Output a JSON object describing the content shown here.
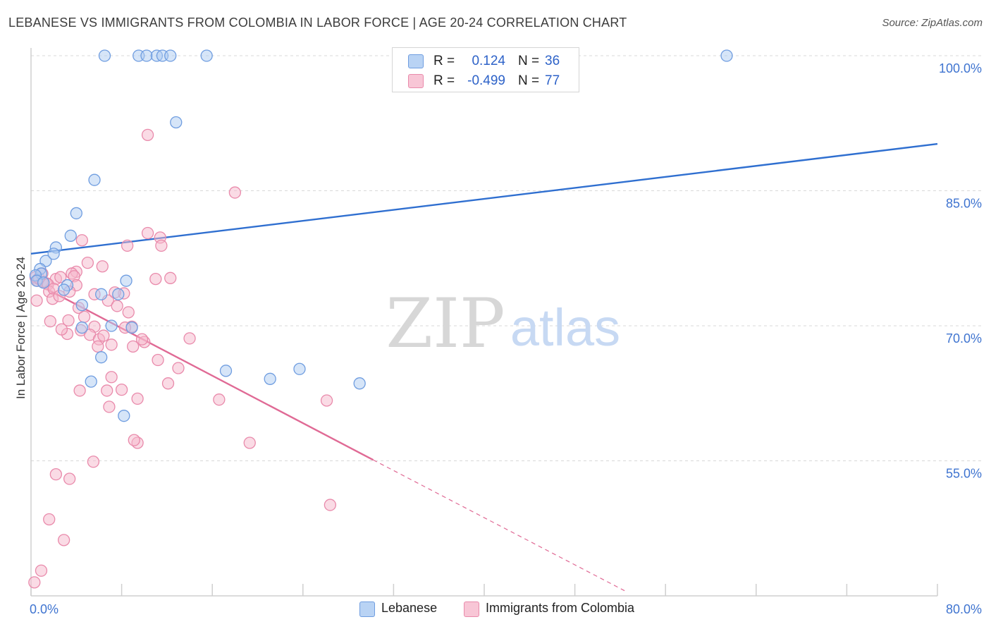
{
  "title": "LEBANESE VS IMMIGRANTS FROM COLOMBIA IN LABOR FORCE | AGE 20-24 CORRELATION CHART",
  "source": "Source: ZipAtlas.com",
  "watermark": {
    "zip": "ZIP",
    "atlas": "atlas"
  },
  "colors": {
    "blue_fill": "#aecbf2",
    "blue_stroke": "#6f9de0",
    "blue_line": "#2f6fd0",
    "pink_fill": "#f5b8cc",
    "pink_stroke": "#e98aab",
    "pink_line": "#e06a95",
    "axis_text": "#3f74d0",
    "grid": "#d8d8d8"
  },
  "legend_top": {
    "rows": [
      {
        "r_label": "R =",
        "r_value": "0.124",
        "n_label": "N =",
        "n_value": "36"
      },
      {
        "r_label": "R =",
        "r_value": "-0.499",
        "n_label": "N =",
        "n_value": "77"
      }
    ]
  },
  "legend_bottom": {
    "items": [
      "Lebanese",
      "Immigrants from Colombia"
    ]
  },
  "chart_data": {
    "type": "scatter",
    "title": "LEBANESE VS IMMIGRANTS FROM COLOMBIA IN LABOR FORCE | AGE 20-24 CORRELATION CHART",
    "xlabel": "",
    "ylabel": "In Labor Force | Age 20-24",
    "xlim": [
      0,
      80
    ],
    "ylim": [
      40,
      103
    ],
    "x_tick_labels": [
      "0.0%",
      "80.0%"
    ],
    "y_ticks": [
      55,
      70,
      85,
      100
    ],
    "y_tick_labels": [
      "55.0%",
      "70.0%",
      "85.0%",
      "100.0%"
    ],
    "grid": true,
    "series": [
      {
        "name": "Lebanese",
        "color": "#aecbf2",
        "x": [
          6.5,
          9.5,
          10.2,
          11.1,
          11.6,
          12.3,
          15.5,
          61.4,
          12.8,
          5.6,
          4.0,
          3.5,
          2.2,
          1.3,
          2.0,
          0.8,
          0.9,
          0.4,
          0.5,
          1.1,
          3.2,
          4.5,
          8.4,
          7.7,
          6.2,
          2.9,
          7.1,
          4.5,
          8.9,
          6.2,
          5.3,
          17.2,
          21.1,
          23.7,
          29.0,
          8.2
        ],
        "y": [
          100,
          100,
          100,
          100,
          100,
          100,
          100,
          100,
          92.6,
          86.2,
          82.5,
          80.0,
          78.7,
          77.2,
          78.0,
          76.3,
          75.8,
          75.6,
          75.0,
          74.8,
          74.5,
          72.3,
          75.0,
          73.5,
          73.5,
          74.0,
          70.0,
          69.8,
          69.8,
          66.5,
          63.8,
          65.0,
          64.1,
          65.2,
          63.6,
          60.0
        ]
      },
      {
        "name": "Immigrants from Colombia",
        "color": "#f5b8cc",
        "x": [
          10.3,
          18.0,
          10.3,
          11.4,
          11.5,
          8.5,
          4.5,
          6.3,
          5.0,
          2.2,
          4.0,
          3.6,
          3.8,
          4.0,
          2.6,
          1.4,
          0.4,
          0.6,
          1.0,
          1.5,
          0.7,
          1.6,
          2.0,
          0.5,
          1.9,
          2.5,
          3.4,
          4.2,
          5.6,
          6.8,
          8.2,
          7.6,
          8.6,
          7.4,
          3.3,
          4.7,
          5.6,
          4.4,
          5.2,
          3.2,
          2.7,
          1.7,
          1.0,
          11.0,
          12.3,
          13.0,
          11.2,
          9.0,
          10.0,
          9.8,
          8.9,
          8.3,
          7.1,
          6.0,
          6.4,
          5.9,
          6.7,
          7.1,
          8.0,
          9.4,
          6.9,
          12.1,
          14.0,
          16.6,
          26.1,
          19.3,
          26.4,
          9.4,
          9.1,
          4.3,
          5.5,
          2.9,
          3.4,
          2.2,
          1.6,
          0.9,
          0.3
        ],
        "y": [
          91.2,
          84.8,
          80.3,
          79.8,
          78.9,
          78.9,
          79.5,
          76.6,
          77.0,
          75.2,
          76.0,
          75.8,
          75.5,
          74.5,
          75.4,
          74.7,
          75.4,
          75.0,
          74.9,
          74.6,
          75.3,
          73.8,
          74.1,
          72.8,
          73.0,
          73.3,
          73.8,
          72.0,
          73.5,
          72.8,
          73.6,
          72.2,
          71.5,
          73.7,
          70.6,
          71.0,
          69.9,
          69.5,
          69.0,
          69.1,
          69.6,
          70.5,
          75.8,
          75.2,
          75.3,
          65.3,
          66.2,
          67.7,
          68.2,
          68.5,
          69.9,
          69.8,
          67.9,
          68.5,
          68.9,
          67.7,
          62.8,
          64.3,
          62.9,
          61.9,
          61.0,
          63.6,
          68.6,
          61.8,
          61.7,
          57.0,
          50.1,
          57.0,
          57.3,
          62.8,
          54.9,
          46.2,
          53.0,
          53.5,
          48.5,
          42.8,
          41.5
        ]
      }
    ],
    "trend_lines": [
      {
        "series": "Lebanese",
        "x": [
          0,
          80
        ],
        "y": [
          78.0,
          90.2
        ],
        "style": "solid"
      },
      {
        "series": "Immigrants from Colombia",
        "x": [
          0,
          30.2
        ],
        "y": [
          75.0,
          55.1
        ],
        "style": "solid"
      },
      {
        "series": "Immigrants from Colombia",
        "x": [
          30.2,
          52.5
        ],
        "y": [
          55.1,
          40.5
        ],
        "style": "dashed"
      }
    ]
  }
}
